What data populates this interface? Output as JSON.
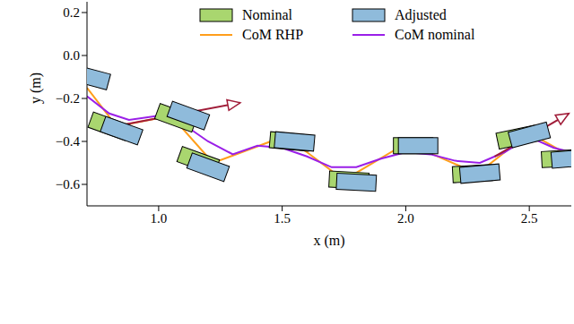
{
  "chart_data": {
    "type": "scatter",
    "xlabel": "x (m)",
    "ylabel": "y (m)",
    "xlim": [
      0.71,
      2.67
    ],
    "ylim": [
      -0.7,
      0.25
    ],
    "xticks": [
      {
        "value": 1.0,
        "label": "1.0"
      },
      {
        "value": 1.5,
        "label": "1.5"
      },
      {
        "value": 2.0,
        "label": "2.0"
      },
      {
        "value": 2.5,
        "label": "2.5"
      }
    ],
    "yticks": [
      {
        "value": -0.6,
        "label": "−0.6"
      },
      {
        "value": -0.4,
        "label": "−0.4"
      },
      {
        "value": -0.2,
        "label": "−0.2"
      },
      {
        "value": 0.0,
        "label": "0.0"
      },
      {
        "value": 0.2,
        "label": "0.2"
      }
    ],
    "legend": "upper right",
    "series": [
      {
        "name": "Nominal",
        "type": "footstep",
        "color": "#a9d66f",
        "x": [
          0.8,
          1.07,
          1.16,
          1.53,
          1.77,
          2.03,
          2.27,
          2.45,
          2.63
        ],
        "y": [
          -0.33,
          -0.29,
          -0.49,
          -0.4,
          -0.58,
          -0.42,
          -0.55,
          -0.38,
          -0.48
        ],
        "yaw": [
          -20,
          -20,
          -20,
          -5,
          -3,
          0,
          3,
          12,
          3
        ]
      },
      {
        "name": "Adjusted",
        "type": "footstep",
        "color": "#8fbbdb",
        "x": [
          0.72,
          0.85,
          1.12,
          1.2,
          1.55,
          1.8,
          2.05,
          2.3,
          2.5,
          2.67
        ],
        "y": [
          -0.1,
          -0.35,
          -0.28,
          -0.52,
          -0.4,
          -0.59,
          -0.42,
          -0.55,
          -0.37,
          -0.48
        ],
        "yaw": [
          -15,
          -20,
          -20,
          -20,
          -5,
          -3,
          0,
          5,
          15,
          5
        ]
      },
      {
        "name": "CoM RHP",
        "type": "line",
        "color": "#ff9e1b",
        "x": [
          0.71,
          0.83,
          1.05,
          1.22,
          1.5,
          1.6,
          1.75,
          1.97,
          2.05,
          2.29,
          2.5,
          2.67
        ],
        "y": [
          -0.15,
          -0.33,
          -0.28,
          -0.5,
          -0.38,
          -0.45,
          -0.58,
          -0.43,
          -0.43,
          -0.55,
          -0.36,
          -0.47
        ]
      },
      {
        "name": "CoM nominal",
        "type": "line",
        "color": "#9a1fe8",
        "x": [
          0.71,
          0.8,
          0.88,
          1.0,
          1.1,
          1.2,
          1.3,
          1.4,
          1.5,
          1.6,
          1.7,
          1.8,
          1.9,
          2.0,
          2.1,
          2.2,
          2.3,
          2.4,
          2.5,
          2.6,
          2.67
        ],
        "y": [
          -0.19,
          -0.27,
          -0.3,
          -0.28,
          -0.32,
          -0.4,
          -0.46,
          -0.42,
          -0.43,
          -0.47,
          -0.52,
          -0.52,
          -0.48,
          -0.45,
          -0.46,
          -0.49,
          -0.5,
          -0.45,
          -0.38,
          -0.43,
          -0.45
        ]
      }
    ],
    "arrows": [
      {
        "color": "#a01c38",
        "x": [
          0.82,
          1.33
        ],
        "y": [
          -0.33,
          -0.22
        ]
      },
      {
        "color": "#a01c38",
        "x": [
          2.36,
          2.66
        ],
        "y": [
          -0.47,
          -0.27
        ]
      }
    ]
  }
}
